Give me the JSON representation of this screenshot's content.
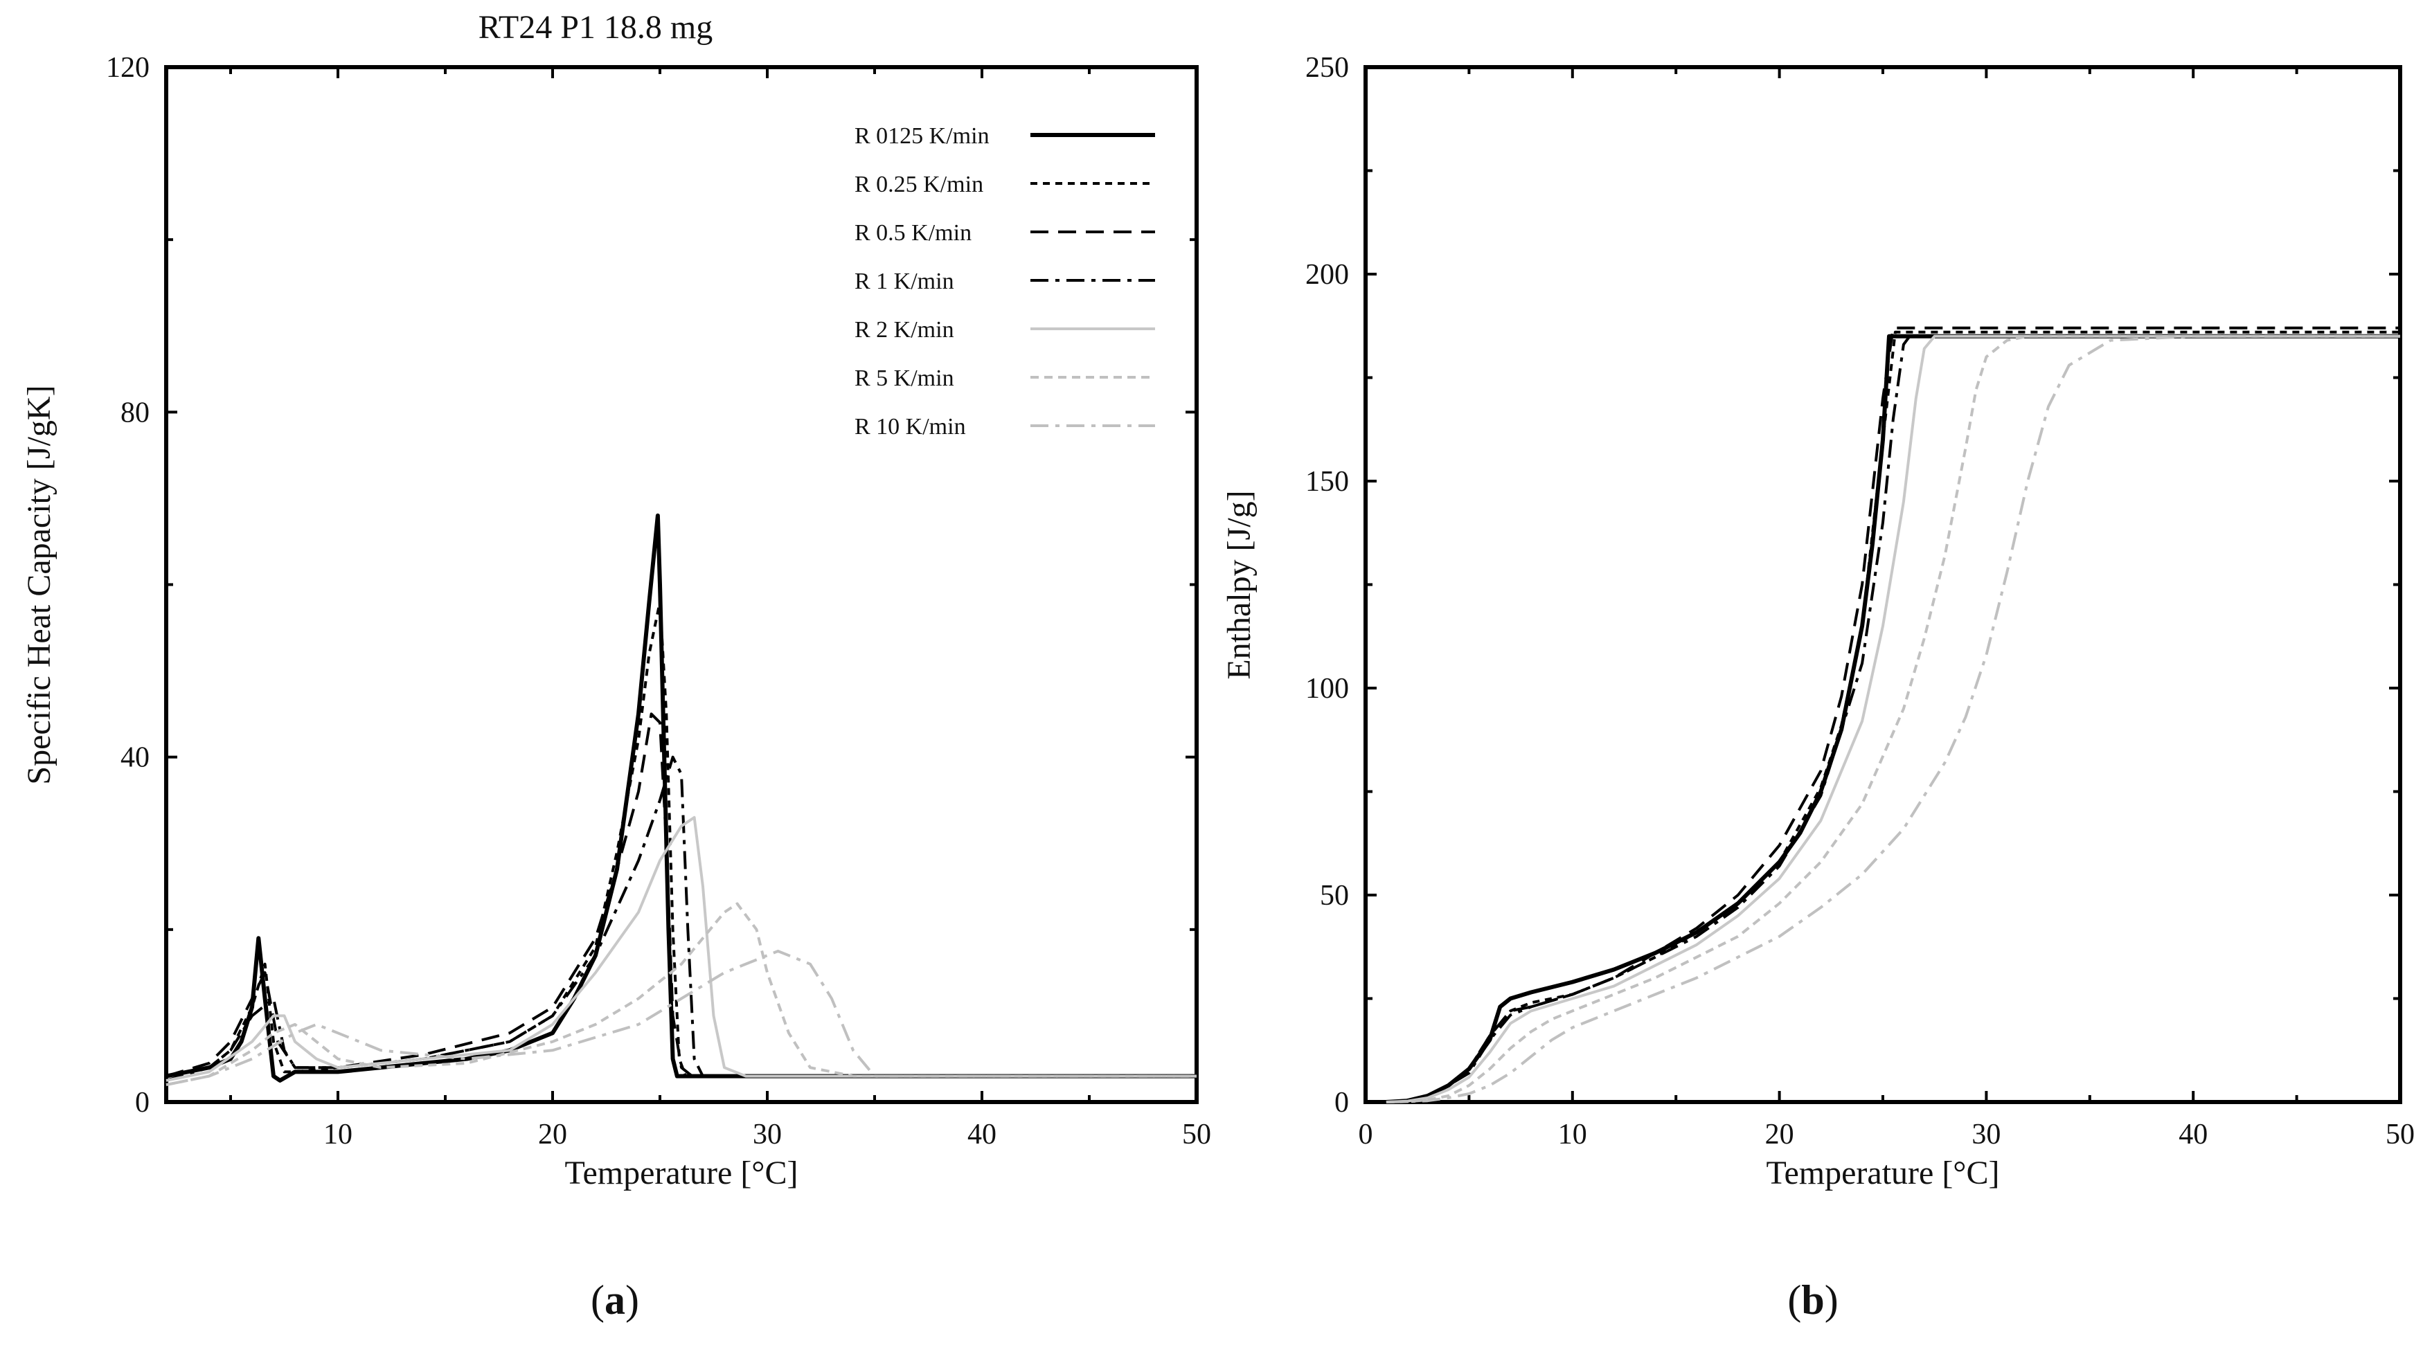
{
  "figure": {
    "captions": [
      {
        "prefix": "(",
        "letter": "a",
        "suffix": ")"
      },
      {
        "prefix": "(",
        "letter": "b",
        "suffix": ")"
      }
    ]
  },
  "series_styles": [
    {
      "name": "R 0125 K/min",
      "color": "#000000",
      "width": 6,
      "dash": ""
    },
    {
      "name": "R 0.25 K/min",
      "color": "#000000",
      "width": 4,
      "dash": "10,8"
    },
    {
      "name": "R 0.5 K/min",
      "color": "#000000",
      "width": 4,
      "dash": "26,14"
    },
    {
      "name": "R 1 K/min",
      "color": "#000000",
      "width": 4,
      "dash": "26,10,6,10"
    },
    {
      "name": "R 2 K/min",
      "color": "#c8c8c8",
      "width": 4,
      "dash": ""
    },
    {
      "name": "R 5 K/min",
      "color": "#c0c0c0",
      "width": 4,
      "dash": "12,8"
    },
    {
      "name": "R 10 K/min",
      "color": "#c0c0c0",
      "width": 4,
      "dash": "26,10,6,10"
    }
  ],
  "chart_data": [
    {
      "id": "a",
      "type": "line",
      "title": "RT24 P1 18.8 mg",
      "xlabel": "Temperature [°C]",
      "ylabel": "Specific Heat Capacity [J/gK]",
      "xlim": [
        2,
        50
      ],
      "ylim": [
        0,
        120
      ],
      "xticks": [
        10,
        20,
        30,
        40,
        50
      ],
      "yticks": [
        0,
        40,
        80,
        120
      ],
      "legend_position": "top-right",
      "series": [
        {
          "name": "R 0125 K/min",
          "x": [
            2,
            4,
            5,
            5.5,
            6,
            6.3,
            6.6,
            7,
            7.3,
            8,
            10,
            12,
            14,
            16,
            18,
            20,
            21,
            22,
            23,
            24,
            24.5,
            24.9,
            25,
            25.2,
            25.4,
            25.6,
            25.8,
            26,
            28,
            30,
            35,
            40,
            45,
            50
          ],
          "y": [
            3,
            4,
            5,
            7,
            11,
            19,
            12,
            3,
            2.5,
            3.5,
            3.5,
            4,
            4.5,
            5,
            6,
            8,
            12,
            17,
            27,
            45,
            58,
            68,
            60,
            40,
            20,
            5,
            3,
            3,
            3,
            3,
            3,
            3,
            3,
            3
          ]
        },
        {
          "name": "R 0.25 K/min",
          "x": [
            2,
            4,
            5,
            6,
            6.6,
            7,
            7.5,
            8,
            10,
            14,
            18,
            20,
            22,
            23,
            24,
            24.5,
            25,
            25.3,
            25.6,
            25.9,
            26.2,
            27,
            30,
            40,
            50
          ],
          "y": [
            3,
            4,
            6,
            11,
            16,
            7,
            3.5,
            3.5,
            4,
            5,
            7,
            10,
            18,
            29,
            42,
            52,
            58,
            45,
            20,
            5,
            3,
            3,
            3,
            3,
            3
          ]
        },
        {
          "name": "R 0.5 K/min",
          "x": [
            2,
            4,
            5,
            6,
            6.6,
            7.2,
            8,
            10,
            14,
            18,
            20,
            22,
            23,
            24,
            24.6,
            25,
            25.3,
            25.6,
            26,
            26.5,
            27,
            30,
            40,
            50
          ],
          "y": [
            3,
            4.5,
            7,
            12,
            15,
            7,
            4,
            4,
            5.5,
            8,
            11,
            19,
            27,
            36,
            45,
            44,
            30,
            10,
            4,
            3,
            3,
            3,
            3,
            3
          ]
        },
        {
          "name": "R 1 K/min",
          "x": [
            2,
            4,
            5,
            6,
            7,
            7.5,
            8,
            10,
            14,
            18,
            20,
            22,
            24,
            25,
            25.6,
            26,
            26.3,
            26.6,
            27,
            28,
            30,
            40,
            50
          ],
          "y": [
            2.5,
            4,
            6,
            10,
            12,
            6,
            4,
            4,
            5,
            7,
            10,
            17,
            28,
            35,
            40,
            38,
            20,
            5,
            3,
            3,
            3,
            3,
            3
          ]
        },
        {
          "name": "R 2 K/min",
          "x": [
            2,
            4,
            6,
            7,
            7.5,
            8,
            9,
            10,
            14,
            18,
            20,
            22,
            24,
            25,
            26,
            26.6,
            27,
            27.5,
            28,
            29,
            30,
            40,
            50
          ],
          "y": [
            2.5,
            3.5,
            7,
            10,
            10,
            7,
            5,
            4,
            5,
            6,
            9,
            15,
            22,
            28,
            32,
            33,
            25,
            10,
            4,
            3,
            3,
            3,
            3
          ]
        },
        {
          "name": "R 5 K/min",
          "x": [
            2,
            4,
            6,
            7,
            8,
            9,
            10,
            12,
            16,
            20,
            22,
            24,
            26,
            27,
            28,
            28.6,
            29.5,
            30,
            31,
            32,
            34,
            40,
            50
          ],
          "y": [
            2,
            3,
            6,
            8,
            9,
            7,
            5,
            4,
            4.5,
            7,
            9,
            12,
            16,
            19,
            22,
            23,
            20,
            15,
            8,
            4,
            3,
            3,
            3
          ]
        },
        {
          "name": "R 10 K/min",
          "x": [
            2,
            4,
            6,
            8,
            9,
            10,
            12,
            16,
            20,
            24,
            26,
            28,
            30,
            30.5,
            31,
            32,
            33,
            34,
            35,
            36,
            40,
            50
          ],
          "y": [
            2,
            3,
            5,
            8,
            9,
            8,
            6,
            5,
            6,
            9,
            12,
            15,
            17,
            17.5,
            17,
            16,
            12,
            6,
            3,
            3,
            3,
            3
          ]
        }
      ]
    },
    {
      "id": "b",
      "type": "line",
      "title": "",
      "xlabel": "Temperature [°C]",
      "ylabel": "Enthalpy [J/g]",
      "xlim": [
        0,
        50
      ],
      "ylim": [
        0,
        250
      ],
      "xticks": [
        0,
        10,
        20,
        30,
        40,
        50
      ],
      "yticks": [
        0,
        50,
        100,
        150,
        200,
        250
      ],
      "legend_position": "none",
      "series": [
        {
          "name": "R 0125 K/min",
          "x": [
            1,
            2,
            3,
            4,
            5,
            6,
            6.5,
            7,
            8,
            10,
            12,
            14,
            16,
            18,
            20,
            21,
            22,
            23,
            24,
            24.5,
            25,
            25.3,
            26,
            30,
            40,
            50
          ],
          "y": [
            0,
            0.3,
            1.5,
            4,
            8,
            15,
            23,
            25,
            26.5,
            29,
            32,
            36,
            41,
            48,
            58,
            65,
            75,
            90,
            115,
            135,
            160,
            185,
            185,
            185,
            185,
            185
          ]
        },
        {
          "name": "R 0.25 K/min",
          "x": [
            1,
            2,
            3,
            4,
            5,
            6,
            7,
            8,
            10,
            12,
            14,
            16,
            18,
            20,
            22,
            23,
            24,
            25,
            25.6,
            26,
            30,
            40,
            50
          ],
          "y": [
            0,
            0.3,
            1.5,
            4,
            8,
            16,
            22,
            24,
            26,
            30,
            35,
            41,
            48,
            58,
            76,
            91,
            115,
            160,
            186,
            186,
            186,
            186,
            186
          ]
        },
        {
          "name": "R 0.5 K/min",
          "x": [
            1,
            2,
            3,
            4,
            5,
            6,
            7,
            8,
            10,
            12,
            14,
            16,
            17,
            18,
            20,
            22,
            23,
            24,
            25,
            25.5,
            26,
            30,
            40,
            50
          ],
          "y": [
            0,
            0.3,
            1.5,
            4,
            8,
            16,
            22,
            23,
            26,
            30,
            36,
            42,
            46,
            50,
            62,
            80,
            98,
            125,
            170,
            187,
            187,
            187,
            187,
            187
          ]
        },
        {
          "name": "R 1 K/min",
          "x": [
            1,
            2,
            3,
            4,
            5,
            6,
            7,
            8,
            10,
            12,
            14,
            16,
            18,
            20,
            22,
            24,
            25,
            25.5,
            26,
            26.3,
            27,
            30,
            40,
            50
          ],
          "y": [
            0,
            0.3,
            1.5,
            4,
            7,
            15,
            21,
            23,
            26,
            30,
            35,
            40,
            47,
            57,
            74,
            106,
            140,
            165,
            183,
            185,
            185,
            185,
            185,
            185
          ]
        },
        {
          "name": "R 2 K/min",
          "x": [
            1,
            2,
            3,
            4,
            5,
            6,
            7,
            8,
            10,
            12,
            14,
            16,
            18,
            20,
            22,
            24,
            25,
            26,
            26.6,
            27,
            27.5,
            28,
            30,
            40,
            50
          ],
          "y": [
            0,
            0.2,
            1,
            3,
            6,
            12,
            19,
            22,
            25,
            28,
            33,
            38,
            45,
            54,
            68,
            92,
            115,
            145,
            170,
            182,
            185,
            185,
            185,
            185,
            185
          ]
        },
        {
          "name": "R 5 K/min",
          "x": [
            1,
            2,
            3,
            4,
            5,
            6,
            7,
            8,
            9,
            10,
            12,
            14,
            16,
            18,
            20,
            22,
            24,
            26,
            27,
            28,
            29,
            29.5,
            30,
            31,
            32,
            40,
            50
          ],
          "y": [
            0,
            0.1,
            0.5,
            1.5,
            4,
            8,
            13,
            17,
            20,
            22,
            26,
            30,
            35,
            40,
            48,
            58,
            72,
            95,
            112,
            132,
            158,
            172,
            180,
            184,
            185,
            185,
            185
          ]
        },
        {
          "name": "R 10 K/min",
          "x": [
            1,
            2,
            3,
            4,
            5,
            6,
            7,
            8,
            9,
            10,
            12,
            14,
            16,
            18,
            20,
            22,
            24,
            26,
            28,
            29,
            30,
            31,
            32,
            33,
            34,
            36,
            40,
            50
          ],
          "y": [
            0,
            0.1,
            0.3,
            1,
            2,
            4,
            7,
            11,
            15,
            18,
            22,
            26,
            30,
            35,
            40,
            47,
            55,
            66,
            82,
            93,
            108,
            128,
            150,
            168,
            178,
            184,
            185,
            185
          ]
        }
      ]
    }
  ]
}
